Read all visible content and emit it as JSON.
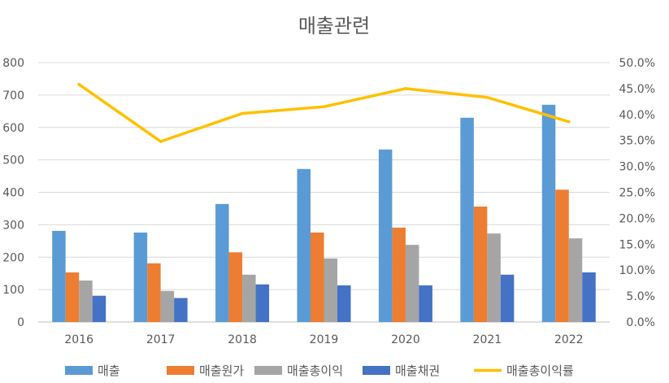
{
  "chart_data": {
    "type": "bar+line",
    "title": "매출관련",
    "categories": [
      "2016",
      "2017",
      "2018",
      "2019",
      "2020",
      "2021",
      "2022"
    ],
    "series": [
      {
        "name": "매출",
        "type": "bar",
        "axis": "left",
        "color": "#5B9BD5",
        "values": [
          281,
          276,
          364,
          472,
          532,
          630,
          670
        ]
      },
      {
        "name": "매출원가",
        "type": "bar",
        "axis": "left",
        "color": "#ED7D31",
        "values": [
          153,
          181,
          215,
          276,
          291,
          356,
          408
        ]
      },
      {
        "name": "매출총이익",
        "type": "bar",
        "axis": "left",
        "color": "#A5A5A5",
        "values": [
          128,
          96,
          146,
          196,
          238,
          273,
          258
        ]
      },
      {
        "name": "매출채권",
        "type": "bar",
        "axis": "left",
        "color": "#4472C4",
        "values": [
          81,
          74,
          116,
          113,
          113,
          146,
          153
        ]
      },
      {
        "name": "매출총이익률",
        "type": "line",
        "axis": "right",
        "color": "#FFC000",
        "values": [
          45.8,
          34.8,
          40.2,
          41.5,
          45.0,
          43.3,
          38.6
        ]
      }
    ],
    "ylim": [
      0,
      800
    ],
    "yticks": [
      "0",
      "100",
      "200",
      "300",
      "400",
      "500",
      "600",
      "700",
      "800"
    ],
    "y2lim": [
      0,
      50
    ],
    "y2ticks": [
      "0.0%",
      "5.0%",
      "10.0%",
      "15.0%",
      "20.0%",
      "25.0%",
      "30.0%",
      "35.0%",
      "40.0%",
      "45.0%",
      "50.0%"
    ],
    "grid": true,
    "legend": "bottom"
  }
}
